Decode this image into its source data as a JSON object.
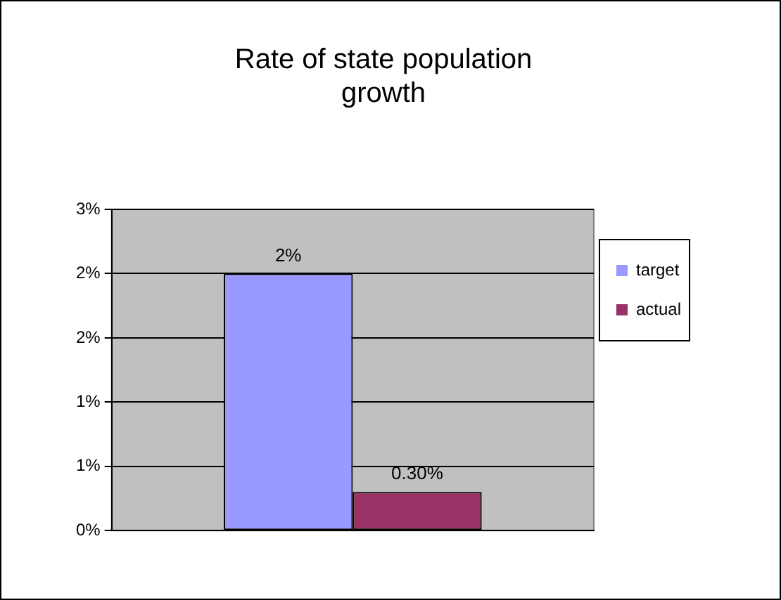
{
  "chart_data": {
    "type": "bar",
    "title": "Rate of state population growth",
    "categories": [
      null
    ],
    "series": [
      {
        "name": "target",
        "color": "#9999ff",
        "values": [
          2
        ],
        "value_labels": [
          "2%"
        ]
      },
      {
        "name": "actual",
        "color": "#993366",
        "values": [
          0.3
        ],
        "value_labels": [
          "0.30%"
        ]
      }
    ],
    "ylim": [
      0,
      2.5
    ],
    "yticks": [
      {
        "value": 0,
        "label": "0%"
      },
      {
        "value": 0.5,
        "label": "1%"
      },
      {
        "value": 1,
        "label": "1%"
      },
      {
        "value": 1.5,
        "label": "2%"
      },
      {
        "value": 2,
        "label": "2%"
      },
      {
        "value": 2.5,
        "label": "3%"
      }
    ],
    "grid": "y",
    "legend": "right"
  }
}
